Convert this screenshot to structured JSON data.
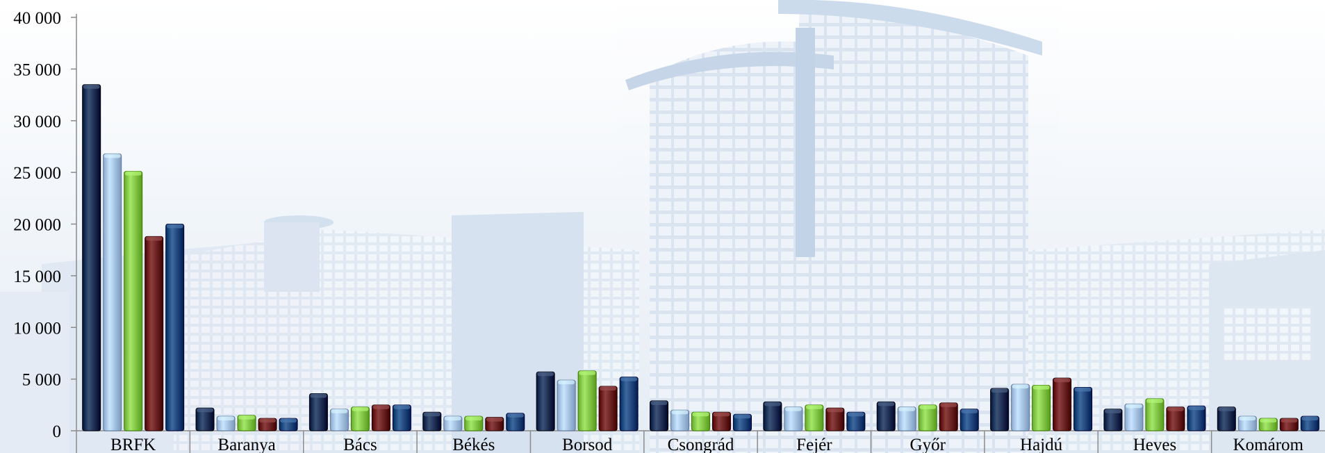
{
  "chart_data": {
    "type": "bar",
    "categories": [
      "BRFK",
      "Baranya",
      "Bács",
      "Békés",
      "Borsod",
      "Csongrád",
      "Fejér",
      "Győr",
      "Hajdú",
      "Heves",
      "Komárom"
    ],
    "series": [
      {
        "color": "#1c3358",
        "values": [
          33500,
          2200,
          3600,
          1800,
          5700,
          2900,
          2800,
          2800,
          4100,
          2100,
          2300
        ]
      },
      {
        "color": "#a9c6ea",
        "values": [
          26800,
          1400,
          2100,
          1400,
          4900,
          2000,
          2300,
          2300,
          4500,
          2600,
          1400
        ]
      },
      {
        "color": "#86c94a",
        "values": [
          25100,
          1500,
          2300,
          1400,
          5800,
          1800,
          2500,
          2500,
          4400,
          3100,
          1200
        ]
      },
      {
        "color": "#6e1f1f",
        "values": [
          18800,
          1200,
          2500,
          1300,
          4300,
          1800,
          2200,
          2700,
          5100,
          2300,
          1200
        ]
      },
      {
        "color": "#1e4a80",
        "values": [
          20000,
          1200,
          2500,
          1700,
          5200,
          1600,
          1800,
          2100,
          4200,
          2400,
          1400
        ]
      }
    ],
    "yticks": [
      "0",
      "5 000",
      "10 000",
      "15 000",
      "20 000",
      "25 000",
      "30 000",
      "35 000",
      "40 000"
    ],
    "ylim": [
      0,
      40000
    ],
    "grid": false,
    "legend": "none"
  }
}
